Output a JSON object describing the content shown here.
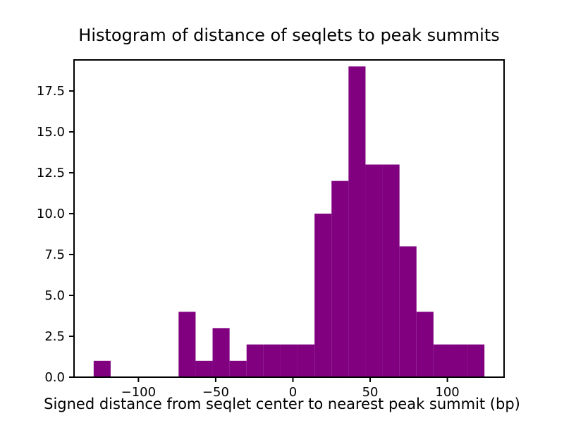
{
  "chart_data": {
    "type": "bar",
    "subtype": "histogram",
    "title": "Histogram of distance of seqlets to peak summits",
    "xlabel": "Signed distance from seqlet center to nearest peak summit (bp)",
    "ylabel": "",
    "bar_color": "#800080",
    "axes_color": "#000000",
    "background_color": "#ffffff",
    "legend": "none",
    "grid": false,
    "xlim": [
      -141.7,
      136.7
    ],
    "ylim": [
      0,
      19.4
    ],
    "bin_edges": [
      -129,
      -118,
      -107,
      -96,
      -85,
      -74,
      -63,
      -52,
      -41,
      -30,
      -19,
      -8,
      3,
      14,
      25,
      36,
      47,
      58,
      69,
      80,
      91,
      102,
      113,
      124
    ],
    "counts": [
      1,
      0,
      0,
      0,
      0,
      4,
      1,
      3,
      1,
      2,
      2,
      2,
      2,
      10,
      12,
      19,
      13,
      13,
      8,
      4,
      2,
      2,
      2
    ],
    "xticks": [
      {
        "value": -100,
        "label": "−100"
      },
      {
        "value": -50,
        "label": "−50"
      },
      {
        "value": 0,
        "label": "0"
      },
      {
        "value": 50,
        "label": "50"
      },
      {
        "value": 100,
        "label": "100"
      }
    ],
    "yticks": [
      {
        "value": 0,
        "label": "0.0"
      },
      {
        "value": 2.5,
        "label": "2.5"
      },
      {
        "value": 5,
        "label": "5.0"
      },
      {
        "value": 7.5,
        "label": "7.5"
      },
      {
        "value": 10,
        "label": "10.0"
      },
      {
        "value": 12.5,
        "label": "12.5"
      },
      {
        "value": 15,
        "label": "15.0"
      },
      {
        "value": 17.5,
        "label": "17.5"
      }
    ]
  }
}
